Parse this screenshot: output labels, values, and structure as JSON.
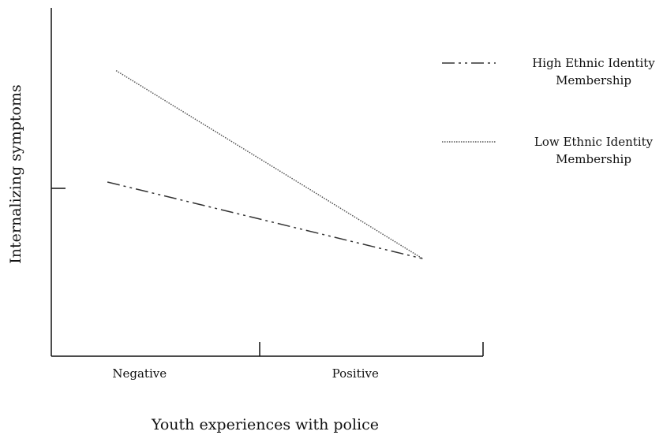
{
  "chart_data": {
    "type": "line",
    "title": "",
    "xlabel": "Youth experiences with police",
    "ylabel": "Internalizing symptoms",
    "x": [
      "Negative",
      "Positive"
    ],
    "xlim": [
      0,
      1
    ],
    "ylim": [
      0,
      1
    ],
    "grid": false,
    "legend_position": "right",
    "series": [
      {
        "name": "High Ethnic Identity Membership",
        "name_lines": [
          "High Ethnic Identity",
          "Membership"
        ],
        "style": "dash-dot",
        "color": "#333333",
        "points": [
          [
            0.13,
            0.5
          ],
          [
            0.86,
            0.28
          ]
        ]
      },
      {
        "name": "Low Ethnic Identity Membership",
        "name_lines": [
          "Low Ethnic Identity",
          "Membership"
        ],
        "style": "dotted",
        "color": "#555555",
        "points": [
          [
            0.15,
            0.82
          ],
          [
            0.86,
            0.28
          ]
        ]
      }
    ]
  }
}
